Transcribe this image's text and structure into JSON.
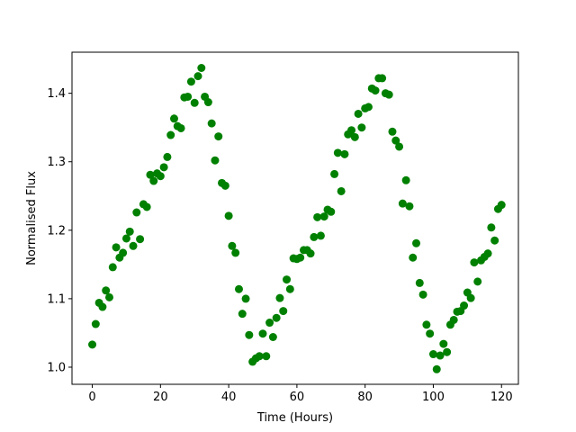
{
  "chart_data": {
    "type": "scatter",
    "title": "",
    "xlabel": "Time (Hours)",
    "ylabel": "Normalised Flux",
    "xlim": [
      -5.95,
      124.95
    ],
    "ylim": [
      0.975,
      1.46
    ],
    "xticks": [
      0,
      20,
      40,
      60,
      80,
      100,
      120
    ],
    "yticks": [
      1.0,
      1.1,
      1.2,
      1.3,
      1.4
    ],
    "xtick_labels": [
      "0",
      "20",
      "40",
      "60",
      "80",
      "100",
      "120"
    ],
    "ytick_labels": [
      "1.0",
      "1.1",
      "1.2",
      "1.3",
      "1.4"
    ],
    "grid": false,
    "marker_color": "#008000",
    "series": [
      {
        "points": [
          [
            0,
            1.033
          ],
          [
            1,
            1.063
          ],
          [
            2,
            1.094
          ],
          [
            3,
            1.088
          ],
          [
            4,
            1.112
          ],
          [
            5,
            1.102
          ],
          [
            6,
            1.146
          ],
          [
            7,
            1.175
          ],
          [
            8,
            1.16
          ],
          [
            9,
            1.167
          ],
          [
            10,
            1.188
          ],
          [
            11,
            1.198
          ],
          [
            12,
            1.177
          ],
          [
            13,
            1.226
          ],
          [
            14,
            1.187
          ],
          [
            15,
            1.238
          ],
          [
            16,
            1.234
          ],
          [
            17,
            1.281
          ],
          [
            18,
            1.272
          ],
          [
            19,
            1.283
          ],
          [
            20,
            1.279
          ],
          [
            21,
            1.292
          ],
          [
            22,
            1.307
          ],
          [
            23,
            1.339
          ],
          [
            24,
            1.363
          ],
          [
            25,
            1.352
          ],
          [
            26,
            1.349
          ],
          [
            27,
            1.394
          ],
          [
            28,
            1.395
          ],
          [
            29,
            1.417
          ],
          [
            30,
            1.386
          ],
          [
            31,
            1.425
          ],
          [
            32,
            1.437
          ],
          [
            33,
            1.395
          ],
          [
            34,
            1.387
          ],
          [
            35,
            1.356
          ],
          [
            36,
            1.302
          ],
          [
            37,
            1.337
          ],
          [
            38,
            1.269
          ],
          [
            39,
            1.265
          ],
          [
            40,
            1.221
          ],
          [
            41,
            1.177
          ],
          [
            42,
            1.167
          ],
          [
            43,
            1.114
          ],
          [
            44,
            1.078
          ],
          [
            45,
            1.1
          ],
          [
            46,
            1.047
          ],
          [
            47,
            1.008
          ],
          [
            48,
            1.013
          ],
          [
            49,
            1.016
          ],
          [
            50,
            1.049
          ],
          [
            51,
            1.016
          ],
          [
            52,
            1.065
          ],
          [
            53,
            1.044
          ],
          [
            54,
            1.072
          ],
          [
            55,
            1.101
          ],
          [
            56,
            1.082
          ],
          [
            57,
            1.128
          ],
          [
            58,
            1.114
          ],
          [
            59,
            1.159
          ],
          [
            60,
            1.158
          ],
          [
            61,
            1.16
          ],
          [
            62,
            1.171
          ],
          [
            63,
            1.171
          ],
          [
            64,
            1.166
          ],
          [
            65,
            1.19
          ],
          [
            66,
            1.219
          ],
          [
            67,
            1.192
          ],
          [
            68,
            1.22
          ],
          [
            69,
            1.23
          ],
          [
            70,
            1.227
          ],
          [
            71,
            1.282
          ],
          [
            72,
            1.313
          ],
          [
            73,
            1.257
          ],
          [
            74,
            1.311
          ],
          [
            75,
            1.34
          ],
          [
            76,
            1.346
          ],
          [
            77,
            1.336
          ],
          [
            78,
            1.37
          ],
          [
            79,
            1.35
          ],
          [
            80,
            1.378
          ],
          [
            81,
            1.38
          ],
          [
            82,
            1.407
          ],
          [
            83,
            1.404
          ],
          [
            84,
            1.422
          ],
          [
            85,
            1.422
          ],
          [
            86,
            1.4
          ],
          [
            87,
            1.398
          ],
          [
            88,
            1.344
          ],
          [
            89,
            1.331
          ],
          [
            90,
            1.322
          ],
          [
            91,
            1.239
          ],
          [
            92,
            1.273
          ],
          [
            93,
            1.235
          ],
          [
            94,
            1.16
          ],
          [
            95,
            1.181
          ],
          [
            96,
            1.123
          ],
          [
            97,
            1.106
          ],
          [
            98,
            1.062
          ],
          [
            99,
            1.049
          ],
          [
            100,
            1.019
          ],
          [
            101,
            0.997
          ],
          [
            102,
            1.017
          ],
          [
            103,
            1.034
          ],
          [
            104,
            1.022
          ],
          [
            105,
            1.062
          ],
          [
            106,
            1.069
          ],
          [
            107,
            1.081
          ],
          [
            108,
            1.082
          ],
          [
            109,
            1.09
          ],
          [
            110,
            1.109
          ],
          [
            111,
            1.101
          ],
          [
            112,
            1.153
          ],
          [
            113,
            1.125
          ],
          [
            114,
            1.156
          ],
          [
            115,
            1.161
          ],
          [
            116,
            1.166
          ],
          [
            117,
            1.204
          ],
          [
            118,
            1.185
          ],
          [
            119,
            1.231
          ],
          [
            120,
            1.237
          ]
        ]
      }
    ]
  }
}
